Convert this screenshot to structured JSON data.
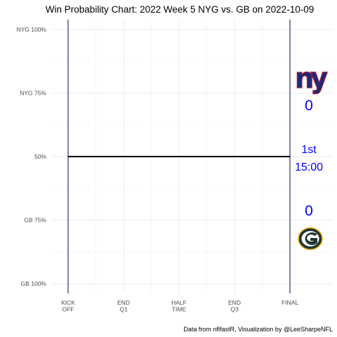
{
  "chart_data": {
    "type": "line",
    "title": "Win Probability Chart: 2022 Week 5 NYG vs. GB on 2022-10-09",
    "caption": "Data from nflfastR, Visualization by @LeeSharpeNFL",
    "x_ticks": [
      {
        "value": 0,
        "lines": [
          "KICK",
          "OFF"
        ]
      },
      {
        "value": 900,
        "lines": [
          "END",
          "Q1"
        ]
      },
      {
        "value": 1800,
        "lines": [
          "HALF",
          "TIME"
        ]
      },
      {
        "value": 2700,
        "lines": [
          "END",
          "Q3"
        ]
      },
      {
        "value": 3600,
        "lines": [
          "FINAL"
        ]
      }
    ],
    "xlim": [
      0,
      3600
    ],
    "y_ticks": [
      {
        "value": 1.0,
        "label": "NYG 100%"
      },
      {
        "value": 0.75,
        "label": "NYG 75%"
      },
      {
        "value": 0.5,
        "label": "50%"
      },
      {
        "value": 0.25,
        "label": "GB 75%"
      },
      {
        "value": 0.0,
        "label": "GB 100%"
      }
    ],
    "ylim": [
      0,
      1
    ],
    "series": [
      {
        "x": [
          0,
          3600
        ],
        "y": [
          0.5,
          0.5
        ],
        "color": "#000000"
      }
    ],
    "vlines": [
      0,
      3600
    ],
    "vline_color": "#0b0a4f",
    "grid": true,
    "home_team": {
      "abbr": "NYG",
      "score": "0",
      "color": "#0000ff",
      "logo": "ny-logo",
      "logo_color": "#1b2a7a",
      "logo_accent": "#a71930"
    },
    "away_team": {
      "abbr": "GB",
      "score": "0",
      "color": "#0000ff",
      "logo": "g-logo",
      "logo_green": "#203731",
      "logo_gold": "#ffb612"
    },
    "game_state": {
      "quarter": "1st",
      "clock": "15:00",
      "color": "#0000ff"
    }
  }
}
